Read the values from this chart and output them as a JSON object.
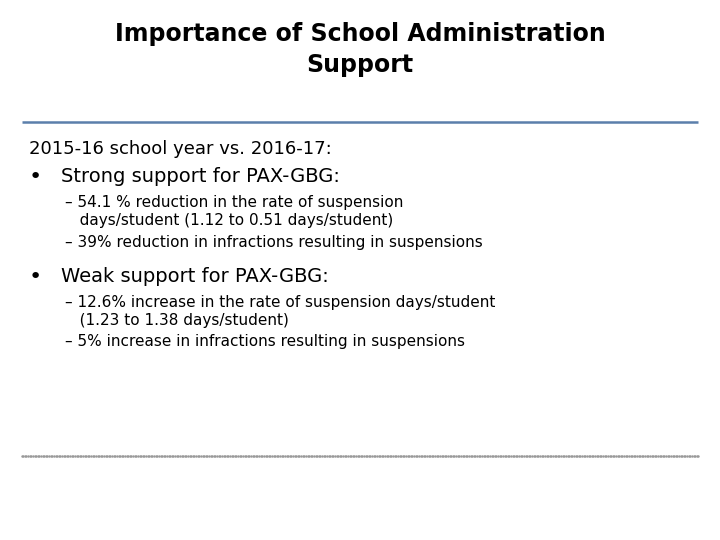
{
  "title_line1": "Importance of School Administration",
  "title_line2": "Support",
  "title_fontsize": 17,
  "title_color": "#000000",
  "separator_color": "#5B7FAB",
  "bg_color": "#FFFFFF",
  "subtitle": "2015-16 school year vs. 2016-17:",
  "subtitle_fontsize": 13,
  "bullet1": "Strong support for PAX-GBG:",
  "bullet1_fontsize": 14,
  "sub1a_line1": "– 54.1 % reduction in the rate of suspension",
  "sub1a_line2": "   days/student (1.12 to 0.51 days/student)",
  "sub1b": "– 39% reduction in infractions resulting in suspensions",
  "bullet2": "Weak support for PAX-GBG:",
  "bullet2_fontsize": 14,
  "sub2a_line1": "– 12.6% increase in the rate of suspension days/student",
  "sub2a_line2": "   (1.23 to 1.38 days/student)",
  "sub2b": "– 5% increase in infractions resulting in suspensions",
  "sub_fontsize": 11,
  "body_text_color": "#000000",
  "footer_dot_color": "#999999"
}
